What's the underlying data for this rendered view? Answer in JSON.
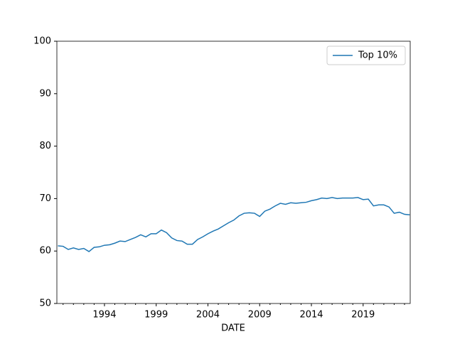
{
  "chart_data": {
    "type": "line",
    "xlabel": "DATE",
    "x": [
      1989.5,
      1990,
      1990.5,
      1991,
      1991.5,
      1992,
      1992.5,
      1993,
      1993.5,
      1994,
      1994.5,
      1995,
      1995.5,
      1996,
      1996.5,
      1997,
      1997.5,
      1998,
      1998.5,
      1999,
      1999.5,
      2000,
      2000.5,
      2001,
      2001.5,
      2002,
      2002.5,
      2003,
      2003.5,
      2004,
      2004.5,
      2005,
      2005.5,
      2006,
      2006.5,
      2007,
      2007.5,
      2008,
      2008.5,
      2009,
      2009.5,
      2010,
      2010.5,
      2011,
      2011.5,
      2012,
      2012.5,
      2013,
      2013.5,
      2014,
      2014.5,
      2015,
      2015.5,
      2016,
      2016.5,
      2017,
      2017.5,
      2018,
      2018.5,
      2019,
      2019.5,
      2020,
      2020.5,
      2021,
      2021.5,
      2022,
      2022.5,
      2023,
      2023.5
    ],
    "series": [
      {
        "name": "Top 10%",
        "color": "#1f77b4",
        "values": [
          61.0,
          60.9,
          60.3,
          60.6,
          60.3,
          60.5,
          59.9,
          60.7,
          60.8,
          61.1,
          61.2,
          61.5,
          61.9,
          61.8,
          62.2,
          62.6,
          63.1,
          62.7,
          63.3,
          63.3,
          64.0,
          63.5,
          62.5,
          62.0,
          61.9,
          61.3,
          61.3,
          62.2,
          62.7,
          63.3,
          63.8,
          64.2,
          64.8,
          65.4,
          65.9,
          66.7,
          67.2,
          67.3,
          67.2,
          66.6,
          67.6,
          68.0,
          68.6,
          69.1,
          68.9,
          69.2,
          69.1,
          69.2,
          69.3,
          69.6,
          69.8,
          70.1,
          70.0,
          70.2,
          70.0,
          70.1,
          70.1,
          70.1,
          70.2,
          69.8,
          69.9,
          68.6,
          68.8,
          68.8,
          68.4,
          67.2,
          67.4,
          67.0,
          66.9
        ]
      }
    ],
    "xlim": [
      1989.4,
      2023.55
    ],
    "xticks": [
      1994,
      1999,
      2004,
      2009,
      2014,
      2019
    ],
    "xminorticks": [
      1990,
      1991,
      1992,
      1993,
      1995,
      1996,
      1997,
      1998,
      2000,
      2001,
      2002,
      2003,
      2005,
      2006,
      2007,
      2008,
      2010,
      2011,
      2012,
      2013,
      2015,
      2016,
      2017,
      2018,
      2020,
      2021,
      2022,
      2023
    ],
    "ylim": [
      50,
      100
    ],
    "yticks": [
      50,
      60,
      70,
      80,
      90,
      100
    ],
    "legend": "upper right"
  }
}
